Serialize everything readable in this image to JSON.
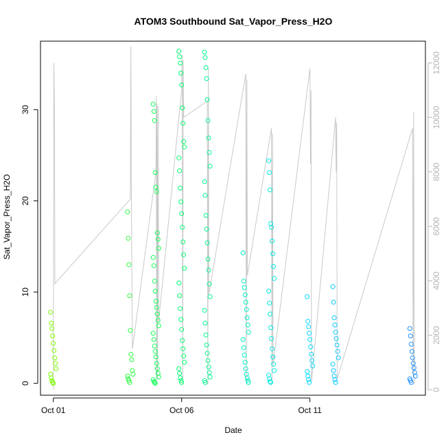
{
  "chart_data": {
    "type": "scatter",
    "title": "ATOM3 Southbound Sat_Vapor_Press_H2O",
    "xlabel": "Date",
    "ylabel": "Sat_Vapor_Press_H2O",
    "x_ticks": [
      "Oct 01",
      "Oct 06",
      "Oct 11"
    ],
    "y_ticks": [
      "0",
      "10",
      "20",
      "30"
    ],
    "y2_ticks": [
      "0",
      "2000",
      "4000",
      "6000",
      "8000",
      "10000",
      "12000"
    ],
    "xlim": [
      "2016-09-30T12:00",
      "2016-10-15T12:00"
    ],
    "ylim": [
      -1.3,
      37.5
    ],
    "y2lim": [
      -200,
      12800
    ],
    "grid": false,
    "legend": "none",
    "colors": {
      "points_early": "#7cfc00",
      "points_mid": "#00ff66",
      "points_late": "#00e5ff",
      "points_end": "#1e90ff",
      "altitude_line": "#c8c8c8",
      "right_axis": "#b3b3b3"
    },
    "series": [
      {
        "marker": "open-circle",
        "axis": "left",
        "clusters": [
          {
            "x": "2016-10-01T00:00",
            "values": [
              7.8,
              6.6,
              6.0,
              5.2,
              4.4,
              3.6,
              2.8,
              2.2,
              1.6,
              1.0,
              0.6,
              0.3,
              0.1,
              0.0
            ]
          },
          {
            "x": "2016-10-04T00:00",
            "values": [
              18.8,
              15.9,
              13.0,
              9.6,
              5.8,
              3.2,
              2.6,
              1.4,
              1.0,
              0.8,
              0.5,
              0.3,
              0.1
            ]
          },
          {
            "x": "2016-10-05T00:00",
            "values": [
              30.6,
              29.8,
              28.8,
              23.1,
              21.5,
              21.0,
              16.5,
              15.8,
              14.8,
              13.8,
              12.9,
              11.2,
              10.1,
              9.0,
              8.3,
              7.6,
              6.9,
              6.3,
              5.5,
              4.8,
              4.1,
              3.5,
              2.9,
              2.2,
              1.6,
              1.1,
              0.7,
              0.4,
              0.2,
              0.1,
              0.0
            ]
          },
          {
            "x": "2016-10-06T00:00",
            "values": [
              36.4,
              35.8,
              35.1,
              34.0,
              32.7,
              30.2,
              28.5,
              26.5,
              25.9,
              24.7,
              23.3,
              21.4,
              19.9,
              18.6,
              17.1,
              15.5,
              14.1,
              12.6,
              11.0,
              9.6,
              8.2,
              7.0,
              5.9,
              4.7,
              3.8,
              3.0,
              2.3,
              1.6,
              1.1,
              0.6,
              0.3,
              0.1
            ]
          },
          {
            "x": "2016-10-07T00:00",
            "values": [
              36.3,
              35.7,
              34.6,
              33.4,
              31.1,
              28.8,
              26.9,
              25.3,
              23.8,
              22.1,
              20.6,
              18.4,
              16.9,
              15.4,
              13.6,
              12.4,
              10.9,
              9.5,
              8.0,
              6.6,
              5.3,
              4.2,
              3.3,
              2.5,
              1.8,
              1.2,
              0.7,
              0.3,
              0.1
            ]
          },
          {
            "x": "2016-10-08T12:00",
            "values": [
              14.3,
              11.2,
              10.5,
              9.7,
              8.9,
              8.1,
              7.2,
              6.4,
              5.6,
              4.8,
              3.9,
              3.1,
              2.3,
              1.6,
              1.0,
              0.6,
              0.3,
              0.1
            ]
          },
          {
            "x": "2016-10-09T12:00",
            "values": [
              24.4,
              23.1,
              21.2,
              17.5,
              17.1,
              15.6,
              14.2,
              12.8,
              11.5,
              10.1,
              8.8,
              7.6,
              6.1,
              4.9,
              3.8,
              2.9,
              2.1,
              1.4,
              0.9,
              0.5,
              0.2,
              0.1
            ]
          },
          {
            "x": "2016-10-11T00:00",
            "values": [
              9.5,
              6.8,
              6.2,
              5.5,
              4.8,
              4.0,
              3.2,
              2.5,
              1.9,
              1.3,
              0.8,
              0.4,
              0.1
            ]
          },
          {
            "x": "2016-10-12T00:00",
            "values": [
              10.6,
              8.9,
              7.2,
              6.4,
              5.6,
              4.9,
              4.2,
              3.5,
              2.8,
              2.1,
              1.4,
              0.8,
              0.4,
              0.1
            ]
          },
          {
            "x": "2016-10-15T00:00",
            "values": [
              6.0,
              5.2,
              4.3,
              3.5,
              2.8,
              2.2,
              1.7,
              1.2,
              0.8,
              0.5,
              0.3,
              0.1
            ]
          }
        ]
      },
      {
        "marker": "line",
        "axis": "right",
        "points": [
          [
            "2016-10-01T00:00",
            0
          ],
          [
            "2016-10-01T00:30",
            12000
          ],
          [
            "2016-10-01T01:00",
            10500
          ],
          [
            "2016-10-01T01:30",
            3900
          ],
          [
            "2016-10-04T00:00",
            7000
          ],
          [
            "2016-10-04T00:30",
            12600
          ],
          [
            "2016-10-04T01:00",
            6800
          ],
          [
            "2016-10-04T02:00",
            1500
          ],
          [
            "2016-10-05T00:00",
            8000
          ],
          [
            "2016-10-05T00:20",
            10800
          ],
          [
            "2016-10-05T00:40",
            300
          ],
          [
            "2016-10-05T01:00",
            10500
          ],
          [
            "2016-10-05T01:20",
            400
          ],
          [
            "2016-10-05T02:00",
            10400
          ],
          [
            "2016-10-05T02:30",
            2500
          ],
          [
            "2016-10-06T00:00",
            11000
          ],
          [
            "2016-10-06T00:30",
            12300
          ],
          [
            "2016-10-06T01:00",
            200
          ],
          [
            "2016-10-06T01:30",
            12100
          ],
          [
            "2016-10-06T02:00",
            10000
          ],
          [
            "2016-10-07T00:00",
            10600
          ],
          [
            "2016-10-07T00:30",
            200
          ],
          [
            "2016-10-07T01:00",
            11800
          ],
          [
            "2016-10-07T01:30",
            3500
          ],
          [
            "2016-10-08T12:00",
            11600
          ],
          [
            "2016-10-08T12:30",
            200
          ],
          [
            "2016-10-08T13:00",
            11400
          ],
          [
            "2016-10-08T13:30",
            4200
          ],
          [
            "2016-10-09T12:00",
            9600
          ],
          [
            "2016-10-09T12:30",
            200
          ],
          [
            "2016-10-09T13:00",
            9400
          ],
          [
            "2016-10-09T13:30",
            900
          ],
          [
            "2016-10-11T00:00",
            11800
          ],
          [
            "2016-10-11T00:30",
            8300
          ],
          [
            "2016-10-11T01:00",
            11000
          ],
          [
            "2016-10-11T01:30",
            300
          ],
          [
            "2016-10-12T00:00",
            10000
          ],
          [
            "2016-10-12T00:30",
            8000
          ],
          [
            "2016-10-12T01:00",
            9800
          ],
          [
            "2016-10-12T01:30",
            400
          ],
          [
            "2016-10-15T00:00",
            9600
          ],
          [
            "2016-10-15T00:30",
            600
          ],
          [
            "2016-10-15T01:00",
            10200
          ],
          [
            "2016-10-15T01:30",
            200
          ]
        ]
      }
    ]
  }
}
